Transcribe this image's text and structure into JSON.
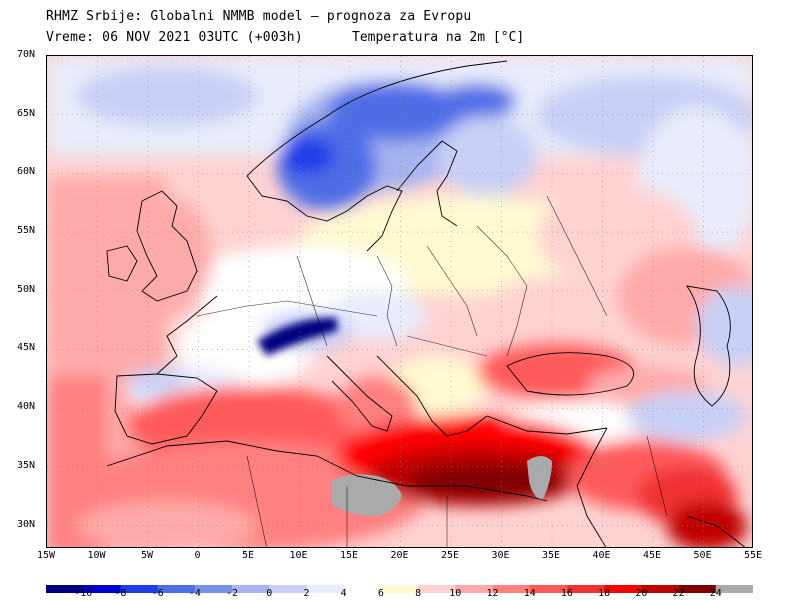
{
  "header": {
    "line1": "RHMZ Srbije: Globalni NMMB model — prognoza za Evropu",
    "line2": "Vreme: 06 NOV 2021 03UTC (+003h)",
    "line3": "Temperatura na 2m [°C]"
  },
  "map": {
    "lat_labels": [
      "70N",
      "65N",
      "60N",
      "55N",
      "50N",
      "45N",
      "40N",
      "35N",
      "30N"
    ],
    "lat_values": [
      70,
      65,
      60,
      55,
      50,
      45,
      40,
      35,
      30
    ],
    "lon_labels": [
      "15W",
      "10W",
      "5W",
      "0",
      "5E",
      "10E",
      "15E",
      "20E",
      "25E",
      "30E",
      "35E",
      "40E",
      "45E",
      "50E",
      "55E"
    ],
    "lon_values": [
      -15,
      -10,
      -5,
      0,
      5,
      10,
      15,
      20,
      25,
      30,
      35,
      40,
      45,
      50,
      55
    ],
    "extent": {
      "lon_min": -15,
      "lon_max": 55,
      "lat_min": 28,
      "lat_max": 70
    }
  },
  "legend": {
    "labels": [
      "-10",
      "-8",
      "-6",
      "-4",
      "-2",
      "0",
      "2",
      "4",
      "6",
      "8",
      "10",
      "12",
      "14",
      "16",
      "18",
      "20",
      "22",
      "24"
    ],
    "colors": [
      "#000080",
      "#0000cd",
      "#1e3ce8",
      "#4f6ee6",
      "#7a91ea",
      "#a6b4f0",
      "#c8d0f6",
      "#e8ecfb",
      "#ffffff",
      "#fffad2",
      "#ffd2d2",
      "#ffaaaa",
      "#ff8080",
      "#ff5a5a",
      "#f03232",
      "#ff0000",
      "#c00000",
      "#800000",
      "#aaaaaa"
    ]
  }
}
